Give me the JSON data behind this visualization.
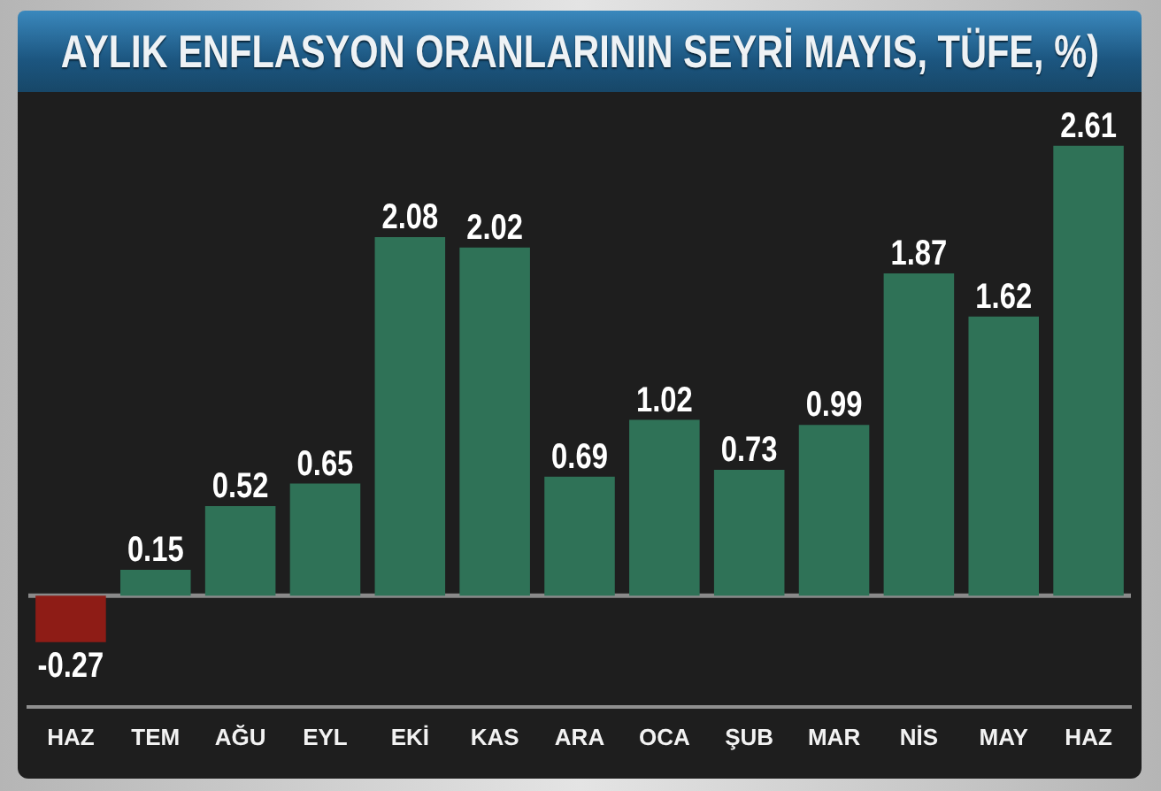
{
  "chart_data": {
    "type": "bar",
    "title": "AYLIK ENFLASYON ORANLARININ SEYRİ MAYIS, TÜFE, %)",
    "categories": [
      "HAZ",
      "TEM",
      "AĞU",
      "EYL",
      "EKİ",
      "KAS",
      "ARA",
      "OCA",
      "ŞUB",
      "MAR",
      "NİS",
      "MAY",
      "HAZ"
    ],
    "values": [
      -0.27,
      0.15,
      0.52,
      0.65,
      2.08,
      2.02,
      0.69,
      1.02,
      0.73,
      0.99,
      1.87,
      1.62,
      2.61
    ],
    "colors": [
      "#8e1c16",
      "#2f7257",
      "#2f7257",
      "#2f7257",
      "#2f7257",
      "#2f7257",
      "#2f7257",
      "#2f7257",
      "#2f7257",
      "#2f7257",
      "#2f7257",
      "#2f7257",
      "#2f7257"
    ],
    "data_labels": true,
    "tick_labels": "x"
  }
}
